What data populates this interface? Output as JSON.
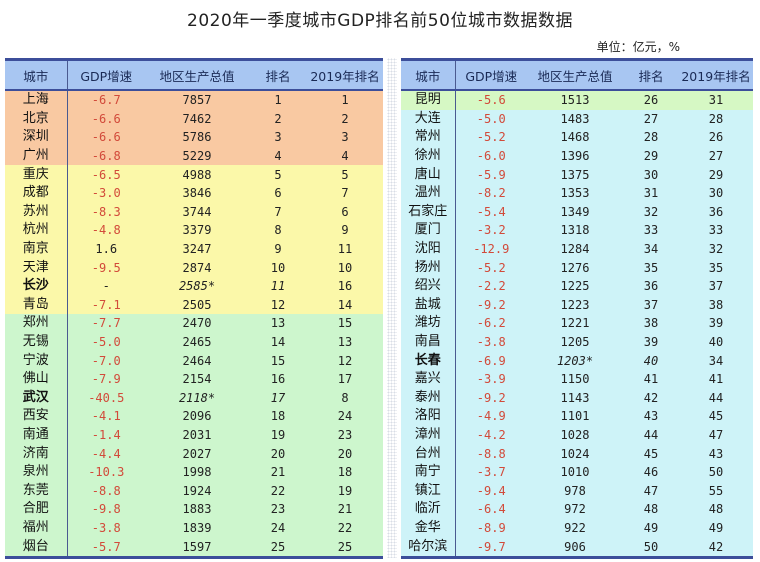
{
  "title": "2020年一季度城市GDP排名前50位城市数据数据",
  "unit_label": "单位：亿元，%",
  "colors": {
    "header_bg": "#A8C6F2",
    "header_border": "#3C4E9A",
    "tier_top4": "#F9C9A2",
    "tier_5_12": "#FBF8A9",
    "tier_13_25": "#CDF6CD",
    "tier_26": "#D6F8C4",
    "tier_27_50": "#CEF3F8",
    "negative_growth": "#D24A3A"
  },
  "columns": [
    "城市",
    "GDP增速",
    "地区生产总值",
    "排名",
    "2019年排名"
  ],
  "left_table": {
    "rows": [
      {
        "city": "上海",
        "growth": "-6.7",
        "gdp": "7857",
        "rank": "1",
        "rank2019": "1",
        "tier": "orange"
      },
      {
        "city": "北京",
        "growth": "-6.6",
        "gdp": "7462",
        "rank": "2",
        "rank2019": "2",
        "tier": "orange"
      },
      {
        "city": "深圳",
        "growth": "-6.6",
        "gdp": "5786",
        "rank": "3",
        "rank2019": "3",
        "tier": "orange"
      },
      {
        "city": "广州",
        "growth": "-6.8",
        "gdp": "5229",
        "rank": "4",
        "rank2019": "4",
        "tier": "orange"
      },
      {
        "city": "重庆",
        "growth": "-6.5",
        "gdp": "4988",
        "rank": "5",
        "rank2019": "5",
        "tier": "yellow"
      },
      {
        "city": "成都",
        "growth": "-3.0",
        "gdp": "3846",
        "rank": "6",
        "rank2019": "7",
        "tier": "yellow"
      },
      {
        "city": "苏州",
        "growth": "-8.3",
        "gdp": "3744",
        "rank": "7",
        "rank2019": "6",
        "tier": "yellow"
      },
      {
        "city": "杭州",
        "growth": "-4.8",
        "gdp": "3379",
        "rank": "8",
        "rank2019": "9",
        "tier": "yellow"
      },
      {
        "city": "南京",
        "growth": "1.6",
        "gdp": "3247",
        "rank": "9",
        "rank2019": "11",
        "tier": "yellow"
      },
      {
        "city": "天津",
        "growth": "-9.5",
        "gdp": "2874",
        "rank": "10",
        "rank2019": "10",
        "tier": "yellow"
      },
      {
        "city": "长沙",
        "growth": "-",
        "gdp": "2585*",
        "rank": "11",
        "rank2019": "16",
        "tier": "yellow",
        "estimated": true
      },
      {
        "city": "青岛",
        "growth": "-7.1",
        "gdp": "2505",
        "rank": "12",
        "rank2019": "14",
        "tier": "yellow"
      },
      {
        "city": "郑州",
        "growth": "-7.7",
        "gdp": "2470",
        "rank": "13",
        "rank2019": "15",
        "tier": "green"
      },
      {
        "city": "无锡",
        "growth": "-5.0",
        "gdp": "2465",
        "rank": "14",
        "rank2019": "13",
        "tier": "green"
      },
      {
        "city": "宁波",
        "growth": "-7.0",
        "gdp": "2464",
        "rank": "15",
        "rank2019": "12",
        "tier": "green"
      },
      {
        "city": "佛山",
        "growth": "-7.9",
        "gdp": "2154",
        "rank": "16",
        "rank2019": "17",
        "tier": "green"
      },
      {
        "city": "武汉",
        "growth": "-40.5",
        "gdp": "2118*",
        "rank": "17",
        "rank2019": "8",
        "tier": "green",
        "estimated": true
      },
      {
        "city": "西安",
        "growth": "-4.1",
        "gdp": "2096",
        "rank": "18",
        "rank2019": "24",
        "tier": "green"
      },
      {
        "city": "南通",
        "growth": "-1.4",
        "gdp": "2031",
        "rank": "19",
        "rank2019": "23",
        "tier": "green"
      },
      {
        "city": "济南",
        "growth": "-4.4",
        "gdp": "2027",
        "rank": "20",
        "rank2019": "20",
        "tier": "green"
      },
      {
        "city": "泉州",
        "growth": "-10.3",
        "gdp": "1998",
        "rank": "21",
        "rank2019": "18",
        "tier": "green"
      },
      {
        "city": "东莞",
        "growth": "-8.8",
        "gdp": "1924",
        "rank": "22",
        "rank2019": "19",
        "tier": "green"
      },
      {
        "city": "合肥",
        "growth": "-9.8",
        "gdp": "1883",
        "rank": "23",
        "rank2019": "21",
        "tier": "green"
      },
      {
        "city": "福州",
        "growth": "-3.8",
        "gdp": "1839",
        "rank": "24",
        "rank2019": "22",
        "tier": "green"
      },
      {
        "city": "烟台",
        "growth": "-5.7",
        "gdp": "1597",
        "rank": "25",
        "rank2019": "25",
        "tier": "green"
      }
    ]
  },
  "right_table": {
    "rows": [
      {
        "city": "昆明",
        "growth": "-5.6",
        "gdp": "1513",
        "rank": "26",
        "rank2019": "31",
        "tier": "lime"
      },
      {
        "city": "大连",
        "growth": "-5.0",
        "gdp": "1483",
        "rank": "27",
        "rank2019": "28",
        "tier": "cyan"
      },
      {
        "city": "常州",
        "growth": "-5.2",
        "gdp": "1468",
        "rank": "28",
        "rank2019": "26",
        "tier": "cyan"
      },
      {
        "city": "徐州",
        "growth": "-6.0",
        "gdp": "1396",
        "rank": "29",
        "rank2019": "27",
        "tier": "cyan"
      },
      {
        "city": "唐山",
        "growth": "-5.9",
        "gdp": "1375",
        "rank": "30",
        "rank2019": "29",
        "tier": "cyan"
      },
      {
        "city": "温州",
        "growth": "-8.2",
        "gdp": "1353",
        "rank": "31",
        "rank2019": "30",
        "tier": "cyan"
      },
      {
        "city": "石家庄",
        "growth": "-5.4",
        "gdp": "1349",
        "rank": "32",
        "rank2019": "36",
        "tier": "cyan"
      },
      {
        "city": "厦门",
        "growth": "-3.2",
        "gdp": "1318",
        "rank": "33",
        "rank2019": "33",
        "tier": "cyan"
      },
      {
        "city": "沈阳",
        "growth": "-12.9",
        "gdp": "1284",
        "rank": "34",
        "rank2019": "32",
        "tier": "cyan"
      },
      {
        "city": "扬州",
        "growth": "-5.2",
        "gdp": "1276",
        "rank": "35",
        "rank2019": "35",
        "tier": "cyan"
      },
      {
        "city": "绍兴",
        "growth": "-2.2",
        "gdp": "1225",
        "rank": "36",
        "rank2019": "37",
        "tier": "cyan"
      },
      {
        "city": "盐城",
        "growth": "-9.2",
        "gdp": "1223",
        "rank": "37",
        "rank2019": "38",
        "tier": "cyan"
      },
      {
        "city": "潍坊",
        "growth": "-6.2",
        "gdp": "1221",
        "rank": "38",
        "rank2019": "39",
        "tier": "cyan"
      },
      {
        "city": "南昌",
        "growth": "-3.8",
        "gdp": "1205",
        "rank": "39",
        "rank2019": "40",
        "tier": "cyan"
      },
      {
        "city": "长春",
        "growth": "-6.9",
        "gdp": "1203*",
        "rank": "40",
        "rank2019": "34",
        "tier": "cyan",
        "estimated": true
      },
      {
        "city": "嘉兴",
        "growth": "-3.9",
        "gdp": "1150",
        "rank": "41",
        "rank2019": "41",
        "tier": "cyan"
      },
      {
        "city": "泰州",
        "growth": "-9.2",
        "gdp": "1143",
        "rank": "42",
        "rank2019": "44",
        "tier": "cyan"
      },
      {
        "city": "洛阳",
        "growth": "-4.9",
        "gdp": "1101",
        "rank": "43",
        "rank2019": "45",
        "tier": "cyan"
      },
      {
        "city": "漳州",
        "growth": "-4.2",
        "gdp": "1028",
        "rank": "44",
        "rank2019": "47",
        "tier": "cyan"
      },
      {
        "city": "台州",
        "growth": "-8.8",
        "gdp": "1024",
        "rank": "45",
        "rank2019": "43",
        "tier": "cyan"
      },
      {
        "city": "南宁",
        "growth": "-3.7",
        "gdp": "1010",
        "rank": "46",
        "rank2019": "50",
        "tier": "cyan"
      },
      {
        "city": "镇江",
        "growth": "-9.4",
        "gdp": "978",
        "rank": "47",
        "rank2019": "55",
        "tier": "cyan"
      },
      {
        "city": "临沂",
        "growth": "-6.4",
        "gdp": "972",
        "rank": "48",
        "rank2019": "48",
        "tier": "cyan"
      },
      {
        "city": "金华",
        "growth": "-8.9",
        "gdp": "922",
        "rank": "49",
        "rank2019": "49",
        "tier": "cyan"
      },
      {
        "city": "哈尔滨",
        "growth": "-9.7",
        "gdp": "906",
        "rank": "50",
        "rank2019": "42",
        "tier": "cyan"
      }
    ]
  }
}
